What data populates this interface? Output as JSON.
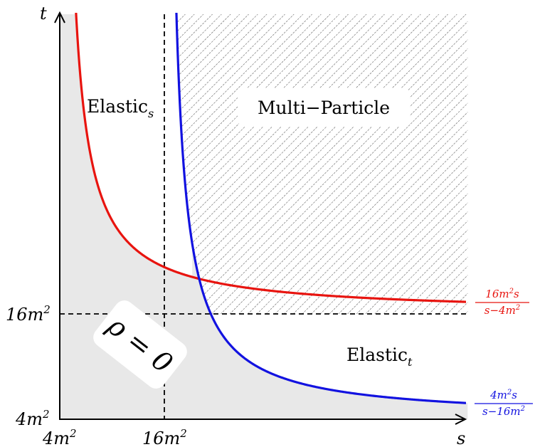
{
  "axes": {
    "x_label": "s",
    "y_label": "t",
    "x_tick_origin": {
      "base": "4m",
      "exp": "2"
    },
    "x_tick_mid": {
      "base": "16m",
      "exp": "2"
    },
    "y_tick_origin": {
      "base": "4m",
      "exp": "2"
    },
    "y_tick_mid": {
      "base": "16m",
      "exp": "2"
    }
  },
  "regions": {
    "elastic_s": {
      "main": "Elastic",
      "sub": "s"
    },
    "elastic_t": {
      "main": "Elastic",
      "sub": "t"
    },
    "multi_particle": "Multi−Particle",
    "rho_zero": "ρ = 0"
  },
  "curves": {
    "red": {
      "color": "#e8140f",
      "num": {
        "base": "16m",
        "exp": "2",
        "tail": "s"
      },
      "den": {
        "head": "s−4m",
        "exp": "2"
      }
    },
    "blue": {
      "color": "#1212e0",
      "num": {
        "base": "4m",
        "exp": "2",
        "tail": "s"
      },
      "den": {
        "head": "s−16m",
        "exp": "2"
      }
    }
  },
  "colors": {
    "shaded_region": "#e8e8e8",
    "hatch": "#555555",
    "axis": "#000000"
  }
}
